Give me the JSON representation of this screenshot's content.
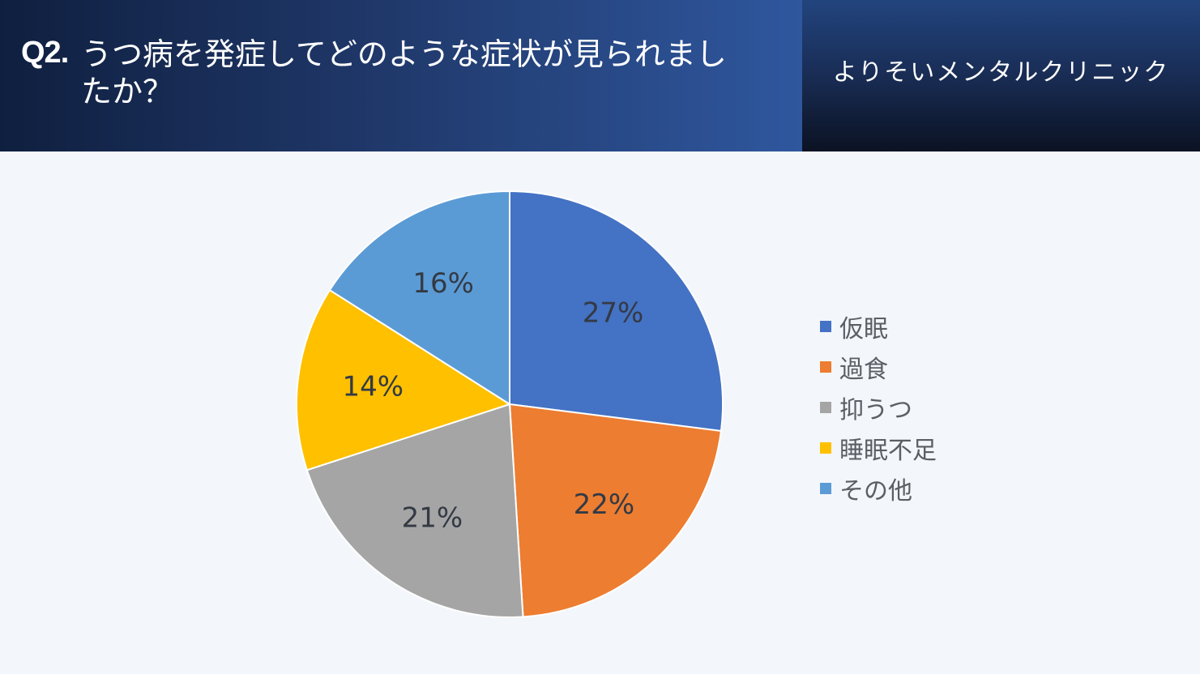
{
  "header": {
    "question_number": "Q2.",
    "question_text": "うつ病を発症してどのような症状が見られましたか？",
    "clinic_name": "よりそいメンタルクリニック"
  },
  "chart_data": {
    "type": "pie",
    "categories": [
      "仮眠",
      "過食",
      "抑うつ",
      "睡眠不足",
      "その他"
    ],
    "values": [
      27,
      22,
      21,
      14,
      16
    ],
    "value_labels": [
      "27%",
      "22%",
      "21%",
      "14%",
      "16%"
    ],
    "colors": [
      "#4472c4",
      "#ed7d31",
      "#a5a5a5",
      "#ffc000",
      "#5b9bd5"
    ],
    "legend_position": "right"
  }
}
